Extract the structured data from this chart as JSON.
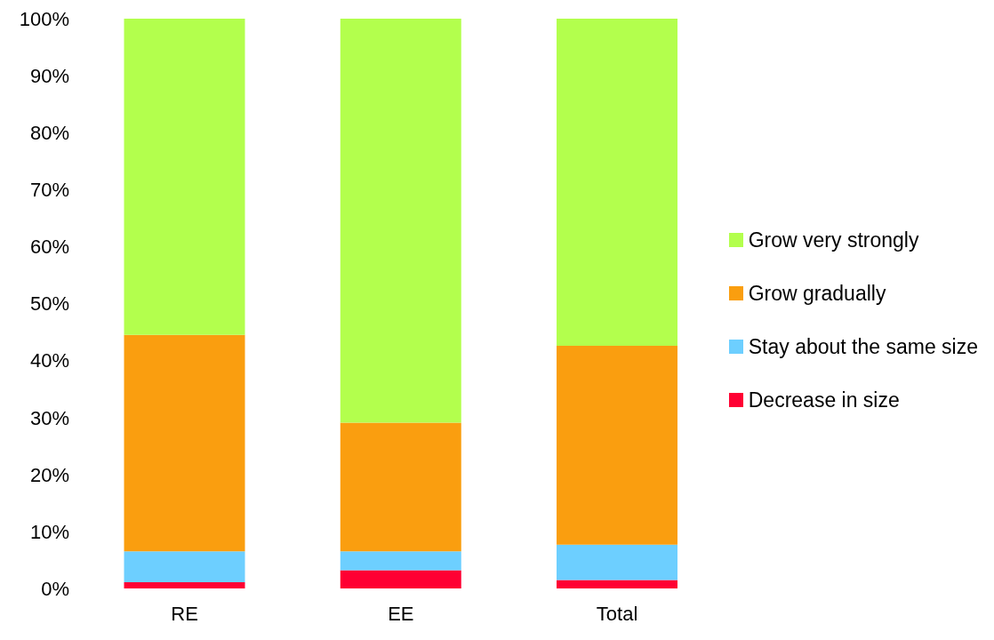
{
  "chart_data": {
    "type": "bar",
    "stacked": true,
    "categories": [
      "RE",
      "EE",
      "Total"
    ],
    "series": [
      {
        "name": "Decrease in size",
        "color": "#ff0033",
        "values": [
          1.1,
          3.2,
          1.5
        ]
      },
      {
        "name": "Stay about the same size",
        "color": "#6dcfff",
        "values": [
          5.4,
          3.3,
          6.2
        ]
      },
      {
        "name": "Grow gradually",
        "color": "#fa9e0f",
        "values": [
          38.0,
          22.6,
          34.9
        ]
      },
      {
        "name": "Grow very strongly",
        "color": "#b3ff4d",
        "values": [
          55.5,
          70.9,
          57.4
        ]
      }
    ],
    "ylim": [
      0,
      100
    ],
    "yticks": [
      {
        "value": 0,
        "label": "0%"
      },
      {
        "value": 10,
        "label": "10%"
      },
      {
        "value": 20,
        "label": "20%"
      },
      {
        "value": 30,
        "label": "30%"
      },
      {
        "value": 40,
        "label": "40%"
      },
      {
        "value": 50,
        "label": "50%"
      },
      {
        "value": 60,
        "label": "60%"
      },
      {
        "value": 70,
        "label": "70%"
      },
      {
        "value": 80,
        "label": "80%"
      },
      {
        "value": 90,
        "label": "90%"
      },
      {
        "value": 100,
        "label": "100%"
      }
    ],
    "grid": false,
    "legend": "right"
  }
}
